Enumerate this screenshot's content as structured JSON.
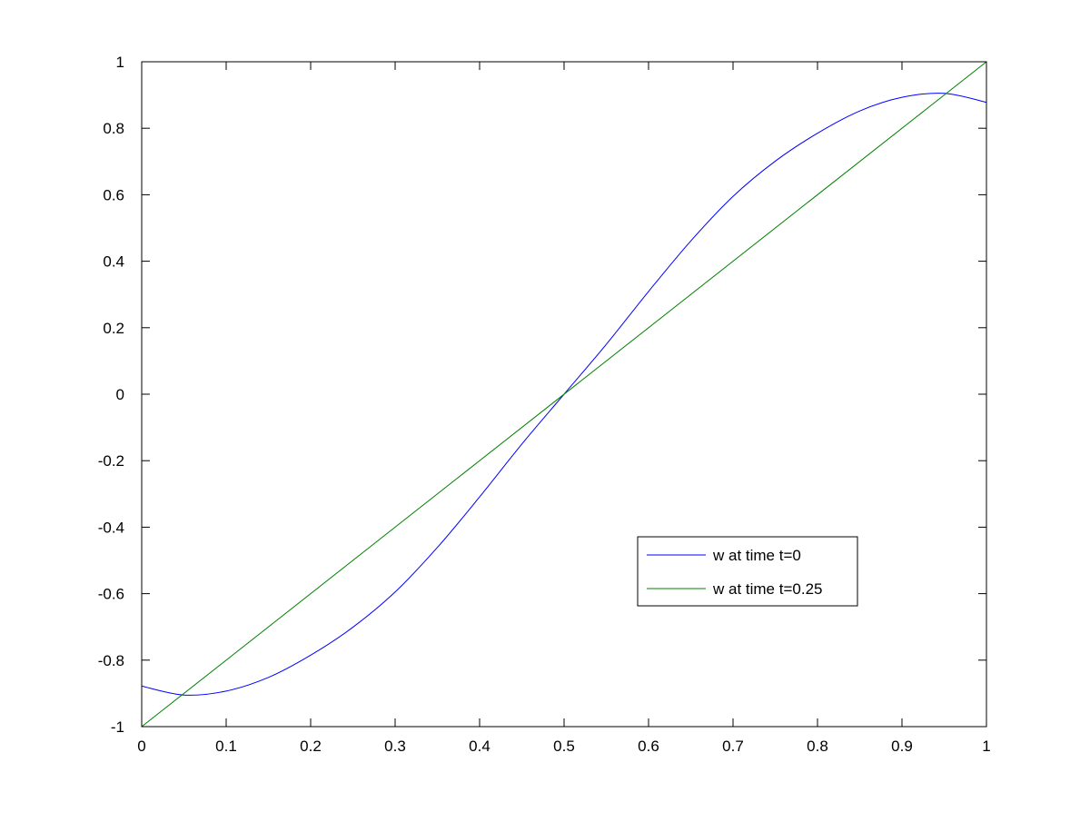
{
  "chart_data": {
    "type": "line",
    "title": "",
    "xlabel": "",
    "ylabel": "",
    "xlim": [
      0,
      1
    ],
    "ylim": [
      -1,
      1
    ],
    "x_ticks": [
      "0",
      "0.1",
      "0.2",
      "0.3",
      "0.4",
      "0.5",
      "0.6",
      "0.7",
      "0.8",
      "0.9",
      "1"
    ],
    "y_ticks": [
      "-1",
      "-0.8",
      "-0.6",
      "-0.4",
      "-0.2",
      "0",
      "0.2",
      "0.4",
      "0.6",
      "0.8",
      "1"
    ],
    "grid": false,
    "legend_position": "lower-right",
    "series": [
      {
        "name": "w at time t=0",
        "color": "#0000ff",
        "x": [
          0,
          0.05,
          0.1,
          0.15,
          0.2,
          0.25,
          0.3,
          0.35,
          0.4,
          0.45,
          0.5,
          0.55,
          0.6,
          0.65,
          0.7,
          0.75,
          0.8,
          0.85,
          0.9,
          0.95,
          1
        ],
        "y": [
          -0.878,
          -0.905,
          -0.893,
          -0.852,
          -0.785,
          -0.701,
          -0.595,
          -0.461,
          -0.309,
          -0.15,
          0,
          0.15,
          0.309,
          0.461,
          0.595,
          0.701,
          0.785,
          0.852,
          0.893,
          0.905,
          0.878
        ]
      },
      {
        "name": "w at time t=0.25",
        "color": "#008000",
        "x": [
          0,
          1
        ],
        "y": [
          -1,
          1
        ]
      }
    ]
  }
}
